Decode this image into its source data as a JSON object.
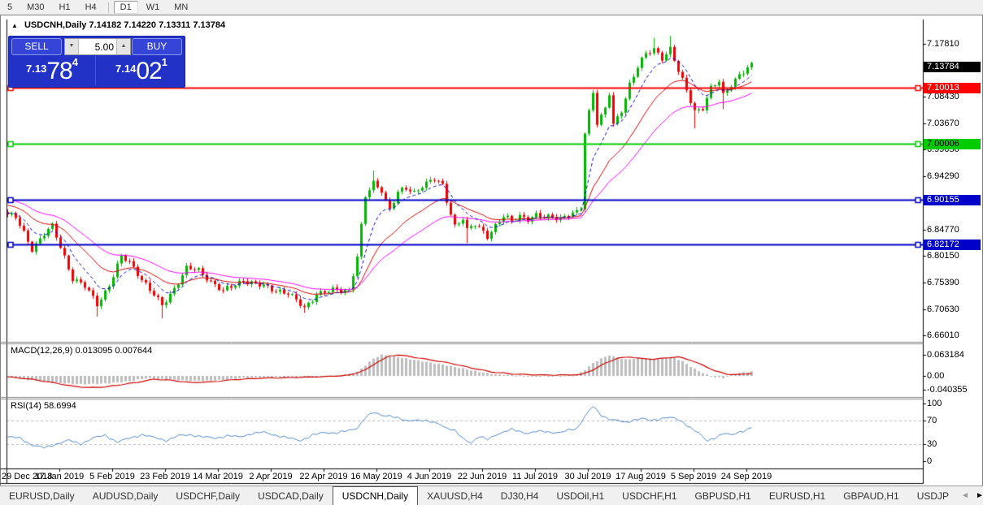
{
  "toolbar": {
    "timeframes": [
      "5",
      "M30",
      "H1",
      "H4",
      "D1",
      "W1",
      "MN"
    ],
    "active": "D1"
  },
  "chart_header": {
    "symbol": "USDCNH,Daily",
    "open": "7.14182",
    "high": "7.14220",
    "low": "7.13311",
    "close": "7.13784",
    "collapse_icon": "▲"
  },
  "trade_panel": {
    "sell_label": "SELL",
    "buy_label": "BUY",
    "volume": "5.00",
    "spin_up_icon": "▲",
    "spin_down_icon": "▼",
    "sell_price": {
      "prefix": "7.13",
      "big": "78",
      "sup": "4"
    },
    "buy_price": {
      "prefix": "7.14",
      "big": "02",
      "sup": "1"
    }
  },
  "price_axis": {
    "ticks": [
      "7.17810",
      "7.13190",
      "7.08430",
      "7.03670",
      "6.99050",
      "6.94290",
      "6.89530",
      "6.84770",
      "6.80150",
      "6.75390",
      "6.70630",
      "6.66010"
    ],
    "current_badge": {
      "label": "7.13784",
      "value": 7.13784,
      "bg": "#000000",
      "fg": "#ffffff"
    }
  },
  "hlines": [
    {
      "label": "7.10013",
      "value": 7.10013,
      "color": "#ff0000",
      "fg": "#ffffff"
    },
    {
      "label": "7.00006",
      "value": 7.00006,
      "color": "#00cc00",
      "fg": "#000000"
    },
    {
      "label": "6.90155",
      "value": 6.90155,
      "color": "#0000c8",
      "fg": "#ffffff"
    },
    {
      "label": "6.82172",
      "value": 6.82172,
      "color": "#0000c8",
      "fg": "#ffffff"
    }
  ],
  "macd_panel": {
    "label": "MACD(12,26,9) 0.013095 0.007644",
    "axis": [
      "0.063184",
      "0.00",
      "-0.040355"
    ],
    "axis_values": [
      0.063184,
      0,
      -0.040355
    ]
  },
  "rsi_panel": {
    "label": "RSI(14) 58.6994",
    "axis": [
      "100",
      "70",
      "30",
      "0"
    ],
    "axis_values": [
      100,
      70,
      30,
      0
    ],
    "levels": [
      70,
      30
    ]
  },
  "date_axis": {
    "labels": [
      "29 Dec 2018",
      "17 Jan 2019",
      "5 Feb 2019",
      "23 Feb 2019",
      "14 Mar 2019",
      "2 Apr 2019",
      "22 Apr 2019",
      "16 May 2019",
      "4 Jun 2019",
      "22 Jun 2019",
      "11 Jul 2019",
      "30 Jul 2019",
      "17 Aug 2019",
      "5 Sep 2019",
      "24 Sep 2019"
    ]
  },
  "tabs": {
    "items": [
      "EURUSD,Daily",
      "AUDUSD,Daily",
      "USDCHF,Daily",
      "USDCAD,Daily",
      "USDCNH,Daily",
      "XAUUSD,H4",
      "DJ30,H4",
      "USDOil,H1",
      "USDCHF,H1",
      "GBPUSD,H1",
      "EURUSD,H1",
      "GBPAUD,H1",
      "USDJP"
    ],
    "active_index": 4,
    "nav_left": "◄",
    "nav_right": "►"
  },
  "chart_data": {
    "type": "candlestick",
    "symbol": "USDCNH",
    "timeframe": "Daily",
    "ohlc_current": {
      "open": 7.14182,
      "high": 7.1422,
      "low": 7.13311,
      "close": 7.13784
    },
    "bid": 7.13784,
    "ask": 7.14021,
    "num_candles": 184,
    "price_range_axis": [
      6.6601,
      7.1781
    ],
    "colors": {
      "bull": "#00b400",
      "bear": "#ee0000",
      "ma_fast": "#0000c8",
      "ma_mid": "#d40000",
      "ma_slow": "#ff00ff",
      "macd_hist": "#bdbdbd",
      "macd_signal": "#cc0000",
      "rsi": "#4f86c6",
      "level_dash": "#b8b8b8"
    },
    "close_anchors": [
      [
        0,
        6.875
      ],
      [
        2,
        6.868
      ],
      [
        6,
        6.815
      ],
      [
        9,
        6.84
      ],
      [
        11,
        6.852
      ],
      [
        14,
        6.8
      ],
      [
        16,
        6.762
      ],
      [
        19,
        6.746
      ],
      [
        22,
        6.716
      ],
      [
        25,
        6.75
      ],
      [
        28,
        6.798
      ],
      [
        30,
        6.79
      ],
      [
        32,
        6.772
      ],
      [
        35,
        6.74
      ],
      [
        38,
        6.712
      ],
      [
        41,
        6.745
      ],
      [
        44,
        6.778
      ],
      [
        47,
        6.775
      ],
      [
        49,
        6.764
      ],
      [
        53,
        6.737
      ],
      [
        56,
        6.75
      ],
      [
        58,
        6.76
      ],
      [
        61,
        6.75
      ],
      [
        64,
        6.744
      ],
      [
        67,
        6.74
      ],
      [
        69,
        6.735
      ],
      [
        71,
        6.72
      ],
      [
        73,
        6.708
      ],
      [
        76,
        6.735
      ],
      [
        79,
        6.737
      ],
      [
        81,
        6.74
      ],
      [
        84,
        6.742
      ],
      [
        86,
        6.8
      ],
      [
        88,
        6.905
      ],
      [
        90,
        6.93
      ],
      [
        92,
        6.92
      ],
      [
        93,
        6.9
      ],
      [
        94,
        6.885
      ],
      [
        96,
        6.912
      ],
      [
        98,
        6.92
      ],
      [
        100,
        6.915
      ],
      [
        102,
        6.928
      ],
      [
        105,
        6.936
      ],
      [
        107,
        6.925
      ],
      [
        108,
        6.9
      ],
      [
        110,
        6.856
      ],
      [
        112,
        6.868
      ],
      [
        113,
        6.845
      ],
      [
        115,
        6.856
      ],
      [
        117,
        6.845
      ],
      [
        118,
        6.838
      ],
      [
        120,
        6.855
      ],
      [
        122,
        6.87
      ],
      [
        124,
        6.862
      ],
      [
        126,
        6.874
      ],
      [
        128,
        6.868
      ],
      [
        130,
        6.872
      ],
      [
        132,
        6.868
      ],
      [
        134,
        6.872
      ],
      [
        136,
        6.87
      ],
      [
        138,
        6.874
      ],
      [
        140,
        6.876
      ],
      [
        141,
        6.885
      ],
      [
        142,
        7.02
      ],
      [
        143,
        7.058
      ],
      [
        144,
        7.095
      ],
      [
        145,
        7.04
      ],
      [
        146,
        7.05
      ],
      [
        147,
        7.062
      ],
      [
        148,
        7.088
      ],
      [
        149,
        7.032
      ],
      [
        150,
        7.045
      ],
      [
        151,
        7.06
      ],
      [
        153,
        7.108
      ],
      [
        155,
        7.138
      ],
      [
        157,
        7.158
      ],
      [
        159,
        7.168
      ],
      [
        161,
        7.155
      ],
      [
        163,
        7.17
      ],
      [
        165,
        7.128
      ],
      [
        167,
        7.094
      ],
      [
        169,
        7.06
      ],
      [
        171,
        7.066
      ],
      [
        173,
        7.098
      ],
      [
        175,
        7.11
      ],
      [
        176,
        7.086
      ],
      [
        178,
        7.108
      ],
      [
        180,
        7.124
      ],
      [
        182,
        7.133
      ],
      [
        183,
        7.138
      ]
    ],
    "wick_events": {
      "22": {
        "l": 6.693
      },
      "38": {
        "l": 6.69
      },
      "73": {
        "l": 6.7
      },
      "90": {
        "h": 6.953
      },
      "113": {
        "l": 6.824
      },
      "142": {
        "l": 6.883
      },
      "159": {
        "h": 7.189
      },
      "163": {
        "h": 7.192
      },
      "169": {
        "l": 7.028
      },
      "176": {
        "l": 7.062
      }
    },
    "moving_averages": [
      {
        "name": "fast",
        "period": 8
      },
      {
        "name": "mid",
        "period": 19
      },
      {
        "name": "slow",
        "period": 34
      }
    ],
    "macd": {
      "params": [
        12,
        26,
        9
      ],
      "current_macd": 0.013095,
      "current_signal": 0.007644,
      "hist_anchors": [
        [
          0,
          -0.004
        ],
        [
          6,
          -0.013
        ],
        [
          12,
          -0.021
        ],
        [
          18,
          -0.025
        ],
        [
          24,
          -0.023
        ],
        [
          30,
          -0.016
        ],
        [
          34,
          -0.007
        ],
        [
          38,
          -0.01
        ],
        [
          44,
          -0.014
        ],
        [
          48,
          -0.015
        ],
        [
          53,
          -0.012
        ],
        [
          58,
          -0.006
        ],
        [
          64,
          -0.004
        ],
        [
          70,
          -0.005
        ],
        [
          76,
          -0.003
        ],
        [
          82,
          0.001
        ],
        [
          86,
          0.012
        ],
        [
          88,
          0.032
        ],
        [
          90,
          0.052
        ],
        [
          92,
          0.063
        ],
        [
          94,
          0.061
        ],
        [
          97,
          0.054
        ],
        [
          102,
          0.044
        ],
        [
          107,
          0.034
        ],
        [
          112,
          0.022
        ],
        [
          116,
          0.012
        ],
        [
          120,
          0.005
        ],
        [
          124,
          0.003
        ],
        [
          128,
          -0.001
        ],
        [
          132,
          0.0005
        ],
        [
          136,
          0.001
        ],
        [
          140,
          0.003
        ],
        [
          142,
          0.018
        ],
        [
          144,
          0.038
        ],
        [
          146,
          0.052
        ],
        [
          148,
          0.062
        ],
        [
          150,
          0.054
        ],
        [
          152,
          0.049
        ],
        [
          154,
          0.052
        ],
        [
          156,
          0.054
        ],
        [
          158,
          0.052
        ],
        [
          160,
          0.05
        ],
        [
          162,
          0.053
        ],
        [
          164,
          0.054
        ],
        [
          166,
          0.044
        ],
        [
          168,
          0.028
        ],
        [
          170,
          0.014
        ],
        [
          172,
          0.004
        ],
        [
          174,
          -0.004
        ],
        [
          176,
          -0.006
        ],
        [
          178,
          0.003
        ],
        [
          180,
          0.009
        ],
        [
          183,
          0.0131
        ]
      ],
      "signal_anchors": [
        [
          0,
          -0.003
        ],
        [
          6,
          -0.01
        ],
        [
          12,
          -0.022
        ],
        [
          16,
          -0.031
        ],
        [
          20,
          -0.035
        ],
        [
          24,
          -0.033
        ],
        [
          28,
          -0.026
        ],
        [
          32,
          -0.019
        ],
        [
          36,
          -0.01
        ],
        [
          40,
          -0.013
        ],
        [
          45,
          -0.02
        ],
        [
          50,
          -0.018
        ],
        [
          56,
          -0.011
        ],
        [
          62,
          -0.007
        ],
        [
          70,
          -0.005
        ],
        [
          78,
          -0.002
        ],
        [
          84,
          0.002
        ],
        [
          88,
          0.018
        ],
        [
          91,
          0.042
        ],
        [
          94,
          0.06
        ],
        [
          96,
          0.063
        ],
        [
          99,
          0.058
        ],
        [
          104,
          0.048
        ],
        [
          109,
          0.038
        ],
        [
          114,
          0.024
        ],
        [
          119,
          0.012
        ],
        [
          124,
          0.006
        ],
        [
          130,
          0.003
        ],
        [
          136,
          0.0025
        ],
        [
          141,
          0.004
        ],
        [
          144,
          0.018
        ],
        [
          147,
          0.038
        ],
        [
          150,
          0.053
        ],
        [
          153,
          0.057
        ],
        [
          156,
          0.052
        ],
        [
          159,
          0.05
        ],
        [
          162,
          0.054
        ],
        [
          165,
          0.057
        ],
        [
          168,
          0.047
        ],
        [
          171,
          0.032
        ],
        [
          174,
          0.015
        ],
        [
          177,
          0.005
        ],
        [
          180,
          0.004
        ],
        [
          183,
          0.0076
        ]
      ]
    },
    "rsi": {
      "period": 14,
      "current": 58.6994,
      "anchors": [
        [
          0,
          42
        ],
        [
          3,
          40
        ],
        [
          6,
          28
        ],
        [
          9,
          23
        ],
        [
          12,
          30
        ],
        [
          15,
          36
        ],
        [
          18,
          30
        ],
        [
          21,
          40
        ],
        [
          24,
          45
        ],
        [
          27,
          33
        ],
        [
          30,
          40
        ],
        [
          33,
          46
        ],
        [
          36,
          41
        ],
        [
          39,
          36
        ],
        [
          42,
          44
        ],
        [
          45,
          46
        ],
        [
          48,
          42
        ],
        [
          51,
          40
        ],
        [
          54,
          44
        ],
        [
          57,
          42
        ],
        [
          60,
          48
        ],
        [
          63,
          50
        ],
        [
          66,
          45
        ],
        [
          69,
          40
        ],
        [
          72,
          36
        ],
        [
          75,
          45
        ],
        [
          78,
          50
        ],
        [
          81,
          49
        ],
        [
          84,
          53
        ],
        [
          86,
          58
        ],
        [
          88,
          76
        ],
        [
          90,
          84
        ],
        [
          92,
          80
        ],
        [
          94,
          79
        ],
        [
          96,
          74
        ],
        [
          98,
          70
        ],
        [
          100,
          72
        ],
        [
          102,
          70
        ],
        [
          104,
          68
        ],
        [
          106,
          66
        ],
        [
          108,
          57
        ],
        [
          110,
          52
        ],
        [
          112,
          40
        ],
        [
          114,
          32
        ],
        [
          116,
          42
        ],
        [
          118,
          38
        ],
        [
          120,
          46
        ],
        [
          122,
          50
        ],
        [
          124,
          55
        ],
        [
          126,
          52
        ],
        [
          128,
          48
        ],
        [
          130,
          51
        ],
        [
          132,
          52
        ],
        [
          134,
          50
        ],
        [
          136,
          49
        ],
        [
          138,
          54
        ],
        [
          140,
          57
        ],
        [
          142,
          78
        ],
        [
          144,
          95
        ],
        [
          146,
          80
        ],
        [
          148,
          73
        ],
        [
          150,
          70
        ],
        [
          152,
          67
        ],
        [
          154,
          72
        ],
        [
          156,
          74
        ],
        [
          158,
          70
        ],
        [
          160,
          73
        ],
        [
          162,
          76
        ],
        [
          164,
          74
        ],
        [
          166,
          68
        ],
        [
          168,
          58
        ],
        [
          170,
          48
        ],
        [
          172,
          35
        ],
        [
          174,
          41
        ],
        [
          176,
          48
        ],
        [
          178,
          45
        ],
        [
          180,
          51
        ],
        [
          182,
          55
        ],
        [
          183,
          58.7
        ]
      ]
    }
  }
}
